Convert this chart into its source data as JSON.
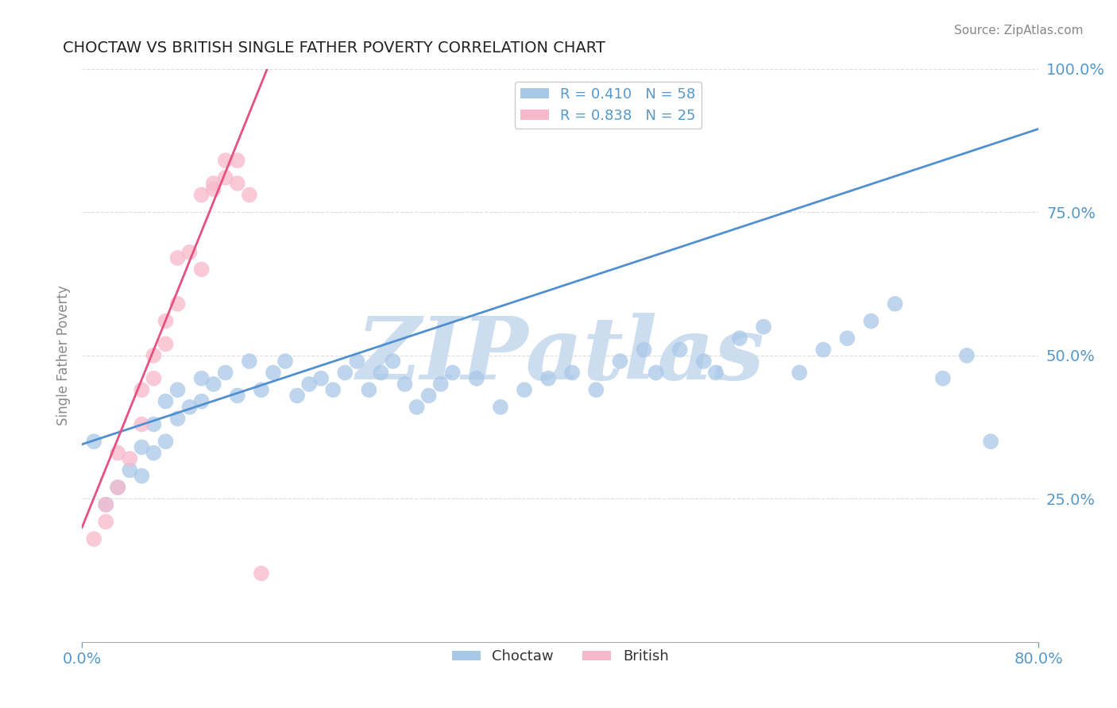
{
  "title": "CHOCTAW VS BRITISH SINGLE FATHER POVERTY CORRELATION CHART",
  "source_text": "Source: ZipAtlas.com",
  "ylabel": "Single Father Poverty",
  "xlim": [
    0.0,
    0.8
  ],
  "ylim": [
    0.0,
    1.0
  ],
  "yticks": [
    0.0,
    0.25,
    0.5,
    0.75,
    1.0
  ],
  "yticklabels_right": [
    "",
    "25.0%",
    "50.0%",
    "75.0%",
    "100.0%"
  ],
  "xtick_left": 0.0,
  "xtick_right": 0.8,
  "xtick_left_label": "0.0%",
  "xtick_right_label": "80.0%",
  "choctaw_R": 0.41,
  "choctaw_N": 58,
  "british_R": 0.838,
  "british_N": 25,
  "choctaw_color": "#a8c8e8",
  "british_color": "#f8b8cc",
  "choctaw_line_color": "#5090d0",
  "british_line_color": "#e85080",
  "watermark": "ZIPatlas",
  "watermark_color": "#ccddf0",
  "choctaw_trend_x0": 0.0,
  "choctaw_trend_y0": 0.345,
  "choctaw_trend_x1": 0.8,
  "choctaw_trend_y1": 0.895,
  "british_trend_x0": 0.0,
  "british_trend_y0": 0.2,
  "british_trend_x1": 0.155,
  "british_trend_y1": 1.0,
  "choctaw_x": [
    0.01,
    0.02,
    0.03,
    0.04,
    0.05,
    0.05,
    0.06,
    0.06,
    0.07,
    0.07,
    0.08,
    0.08,
    0.09,
    0.1,
    0.1,
    0.11,
    0.12,
    0.13,
    0.14,
    0.15,
    0.16,
    0.17,
    0.18,
    0.19,
    0.2,
    0.21,
    0.22,
    0.23,
    0.24,
    0.25,
    0.26,
    0.27,
    0.28,
    0.29,
    0.3,
    0.31,
    0.33,
    0.35,
    0.37,
    0.39,
    0.41,
    0.43,
    0.45,
    0.47,
    0.48,
    0.5,
    0.52,
    0.53,
    0.55,
    0.57,
    0.6,
    0.62,
    0.64,
    0.66,
    0.68,
    0.72,
    0.74,
    0.76
  ],
  "choctaw_y": [
    0.35,
    0.24,
    0.27,
    0.3,
    0.29,
    0.34,
    0.33,
    0.38,
    0.35,
    0.42,
    0.39,
    0.44,
    0.41,
    0.42,
    0.46,
    0.45,
    0.47,
    0.43,
    0.49,
    0.44,
    0.47,
    0.49,
    0.43,
    0.45,
    0.46,
    0.44,
    0.47,
    0.49,
    0.44,
    0.47,
    0.49,
    0.45,
    0.41,
    0.43,
    0.45,
    0.47,
    0.46,
    0.41,
    0.44,
    0.46,
    0.47,
    0.44,
    0.49,
    0.51,
    0.47,
    0.51,
    0.49,
    0.47,
    0.53,
    0.55,
    0.47,
    0.51,
    0.53,
    0.56,
    0.59,
    0.46,
    0.5,
    0.35
  ],
  "british_x": [
    0.01,
    0.02,
    0.02,
    0.03,
    0.03,
    0.04,
    0.05,
    0.05,
    0.06,
    0.06,
    0.07,
    0.07,
    0.08,
    0.08,
    0.09,
    0.1,
    0.1,
    0.11,
    0.11,
    0.12,
    0.12,
    0.13,
    0.13,
    0.14,
    0.15
  ],
  "british_y": [
    0.18,
    0.21,
    0.24,
    0.27,
    0.33,
    0.32,
    0.38,
    0.44,
    0.5,
    0.46,
    0.52,
    0.56,
    0.59,
    0.67,
    0.68,
    0.65,
    0.78,
    0.79,
    0.8,
    0.81,
    0.84,
    0.8,
    0.84,
    0.78,
    0.12
  ],
  "legend_labels": [
    "Choctaw",
    "British"
  ],
  "title_color": "#222222",
  "axis_label_color": "#888888",
  "tick_color": "#5599cc",
  "grid_color": "#dddddd",
  "background_color": "#ffffff"
}
